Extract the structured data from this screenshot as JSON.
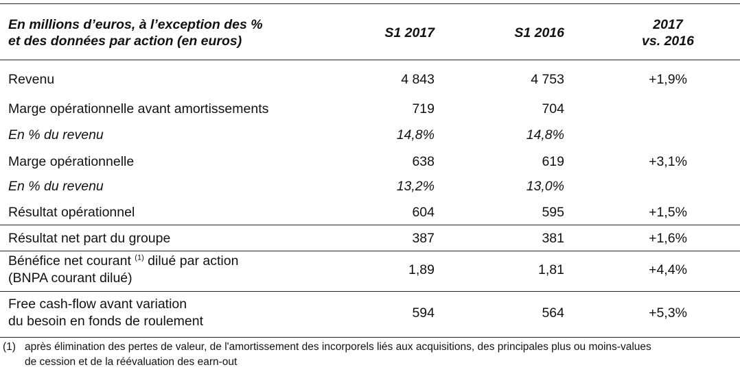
{
  "header": {
    "label_line1": "En millions d’euros, à l’exception des %",
    "label_line2": "et des données par action (en euros)",
    "col1": "S1 2017",
    "col2": "S1 2016",
    "col3_line1": "2017",
    "col3_line2": "vs. 2016"
  },
  "rows": [
    {
      "label": "Revenu",
      "v2017": "4 843",
      "v2016": "4 753",
      "var": "+1,9%"
    },
    {
      "label": "Marge opérationnelle avant amortissements",
      "v2017": "719",
      "v2016": "704",
      "var": ""
    },
    {
      "label": "En % du revenu",
      "v2017": "14,8%",
      "v2016": "14,8%",
      "var": ""
    },
    {
      "label": "Marge opérationnelle",
      "v2017": "638",
      "v2016": "619",
      "var": "+3,1%"
    },
    {
      "label": "En % du revenu",
      "v2017": "13,2%",
      "v2016": "13,0%",
      "var": ""
    },
    {
      "label": "Résultat opérationnel",
      "v2017": "604",
      "v2016": "595",
      "var": "+1,5%"
    },
    {
      "label": "Résultat net part du groupe",
      "v2017": "387",
      "v2016": "381",
      "var": "+1,6%"
    },
    {
      "label_a": "Bénéfice net courant ",
      "label_sup": "(1)",
      "label_b": " dilué par action",
      "label_line2": "(BNPA courant dilué)",
      "v2017": "1,89",
      "v2016": "1,81",
      "var": "+4,4%"
    },
    {
      "label_line1": "Free cash-flow avant variation",
      "label_line2": "du besoin en fonds de roulement",
      "v2017": "594",
      "v2016": "564",
      "var": "+5,3%"
    }
  ],
  "footnote": {
    "marker": "(1)",
    "line1": "après élimination des pertes de valeur, de l'amortissement des incorporels liés aux acquisitions, des principales plus ou moins-values",
    "line2": "de cession et de la réévaluation des earn-out"
  }
}
